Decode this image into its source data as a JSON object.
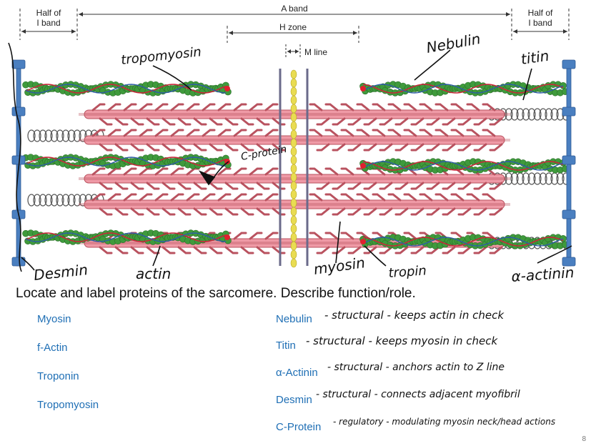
{
  "diagram": {
    "band_labels": {
      "half_i_left": [
        "Half of",
        "I band"
      ],
      "a_band": "A band",
      "half_i_right": [
        "Half of",
        "I band"
      ],
      "h_zone": "H zone",
      "m_line": "M line"
    },
    "annotations": {
      "tropomyosin": "tropomyosin",
      "nebulin": "Nebulin",
      "titin": "titin",
      "c_protein": "C-protein",
      "desmin": "Desmin",
      "actin": "actin",
      "myosin": "myosin",
      "tropin": "tropin",
      "alpha_actinin": "α-actinin"
    }
  },
  "instruction": "Locate and label proteins of the sarcomere.  Describe function/role.",
  "left_list": [
    "Myosin",
    "f-Actin",
    "Troponin",
    "Tropomyosin"
  ],
  "right_list": [
    {
      "term": "Nebulin",
      "note": "- structural - keeps actin in check"
    },
    {
      "term": "Titin",
      "note": "- structural - keeps myosin in check"
    },
    {
      "term": "α-Actinin",
      "note": "- structural - anchors actin to Z line"
    },
    {
      "term": "Desmin",
      "note": "- structural - connects adjacent myofibril"
    },
    {
      "term": "C-Protein",
      "note": "- regulatory - modulating myosin neck/head actions"
    }
  ],
  "page_number": "8",
  "colors": {
    "z_disc": "#4a7fc0",
    "actin_bead": "#3f9a3c",
    "tropomyosin": "#c8283a",
    "nebulin": "#2f5ca8",
    "myosin": "#ef9aa6",
    "myosin_edge": "#b9525f",
    "m_line_bead": "#e9dc52",
    "term": "#1f6fb5"
  }
}
